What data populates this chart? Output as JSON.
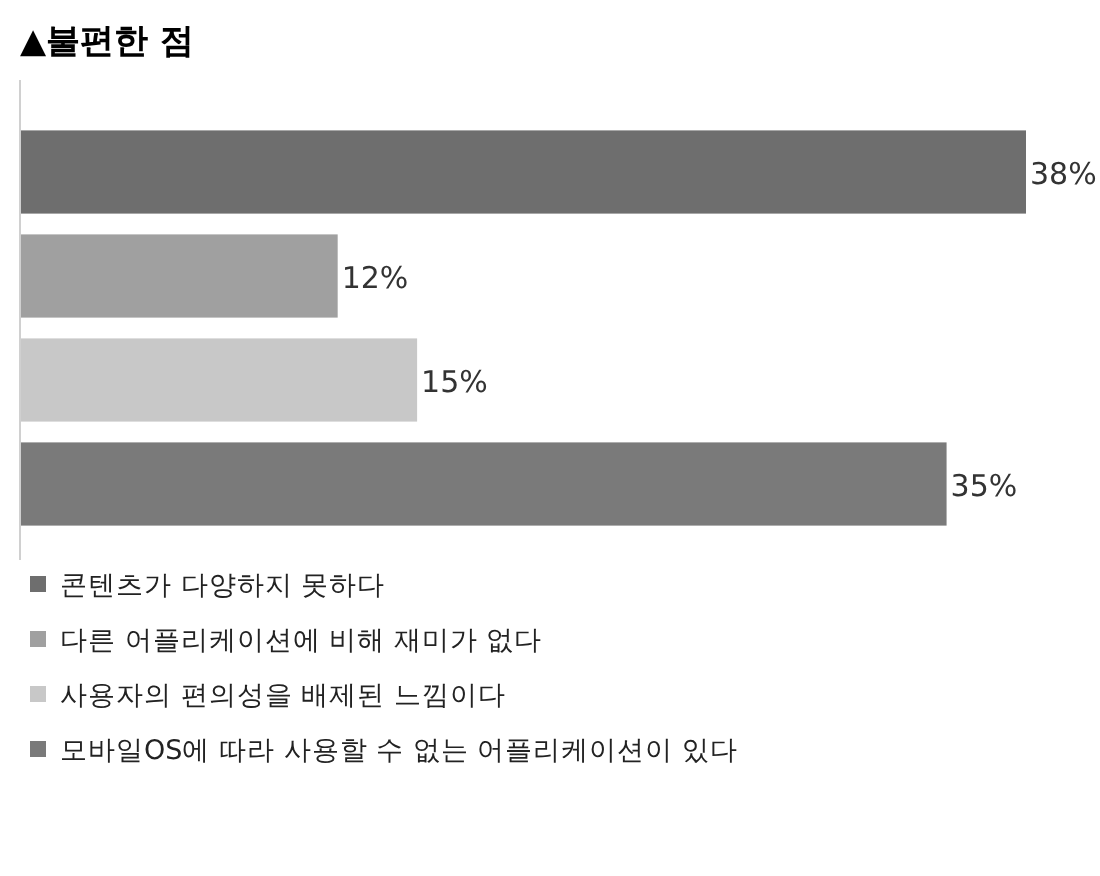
{
  "chart_data": {
    "type": "bar",
    "orientation": "horizontal",
    "title": "▲불편한 점",
    "categories": [
      null,
      null,
      null,
      null
    ],
    "series": [
      {
        "name": "콘텐츠가 다양하지 못하다",
        "color": "#6e6e6e",
        "values": [
          38,
          null,
          null,
          null
        ],
        "value_labels": [
          "38%",
          null,
          null,
          null
        ]
      },
      {
        "name": "다른 어플리케이션에 비해 재미가 없다",
        "color": "#a0a0a0",
        "values": [
          null,
          12,
          null,
          null
        ],
        "value_labels": [
          null,
          "12%",
          null,
          null
        ]
      },
      {
        "name": "사용자의 편의성을 배제된 느낌이다",
        "color": "#c8c8c8",
        "values": [
          null,
          null,
          15,
          null
        ],
        "value_labels": [
          null,
          null,
          "15%",
          null
        ]
      },
      {
        "name": "모바일OS에 따라 사용할 수 없는 어플리케이션이 있다",
        "color": "#7a7a7a",
        "values": [
          null,
          null,
          null,
          35
        ],
        "value_labels": [
          null,
          null,
          null,
          "35%"
        ]
      }
    ],
    "stacked": true,
    "legend": "bottom"
  }
}
